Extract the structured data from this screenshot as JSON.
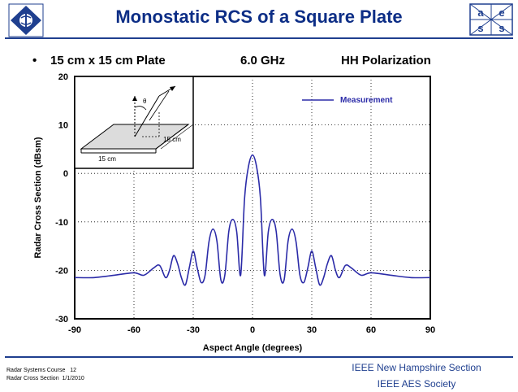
{
  "slide": {
    "title": "Monostatic RCS of a Square Plate",
    "bullet": "•",
    "subtitle_size": "15 cm x 15 cm Plate",
    "subtitle_freq": "6.0 GHz",
    "subtitle_pol": "HH Polarization",
    "footer_left_line1": "Radar Systems Course",
    "footer_left_page": "12",
    "footer_left_line2": "Radar Cross Section",
    "footer_left_date": "1/1/2010",
    "footer_right_line1": "IEEE New Hampshire Section",
    "footer_right_line2": "IEEE AES Society",
    "aess_letters": [
      "a",
      "e",
      "s",
      "s"
    ]
  },
  "inset": {
    "dimension_label_a": "15 cm",
    "dimension_label_b": "15 cm",
    "angle_label": "θ"
  },
  "colors": {
    "title": "#0d2e86",
    "curve": "#2b2ba8",
    "accent": "#1f3f8f"
  },
  "chart_data": {
    "type": "line",
    "title": "Monostatic RCS of a Square Plate",
    "xlabel": "Aspect Angle (degrees)",
    "ylabel": "Radar Cross Section (dBsm)",
    "xlim": [
      -90,
      90
    ],
    "ylim": [
      -30,
      20
    ],
    "xticks": [
      -90,
      -60,
      -30,
      0,
      30,
      60,
      90
    ],
    "yticks": [
      20,
      10,
      0,
      -10,
      -20,
      -30
    ],
    "grid": true,
    "legend": {
      "position": "top-right",
      "entries": [
        "Measurement"
      ]
    },
    "series": [
      {
        "name": "Measurement",
        "x": [
          -90,
          -80,
          -70,
          -60,
          -55,
          -50,
          -47,
          -44,
          -42,
          -40,
          -38,
          -36,
          -34,
          -32,
          -30,
          -28,
          -26,
          -24,
          -22,
          -20,
          -18,
          -16,
          -14,
          -12,
          -10,
          -8,
          -6,
          -4,
          -2,
          0,
          2,
          4,
          6,
          8,
          10,
          12,
          14,
          16,
          18,
          20,
          22,
          24,
          26,
          28,
          30,
          32,
          34,
          36,
          38,
          40,
          42,
          44,
          47,
          50,
          55,
          60,
          70,
          80,
          90
        ],
        "y": [
          -21.5,
          -21.5,
          -21,
          -20.5,
          -21,
          -19.5,
          -19,
          -21.5,
          -20,
          -17,
          -18.5,
          -21.5,
          -23,
          -19.5,
          -16,
          -19.5,
          -22.5,
          -21,
          -14,
          -11.5,
          -14,
          -22,
          -21,
          -12,
          -9.5,
          -12,
          -21,
          -5,
          1.5,
          3.8,
          1.5,
          -5,
          -21,
          -12,
          -9.5,
          -12,
          -21,
          -22,
          -14,
          -11.5,
          -14,
          -21,
          -22.5,
          -19.5,
          -16,
          -19.5,
          -23,
          -21.5,
          -18.5,
          -17,
          -20,
          -21.5,
          -19,
          -19.5,
          -21,
          -20.5,
          -21,
          -21.5,
          -21.5
        ]
      }
    ]
  }
}
